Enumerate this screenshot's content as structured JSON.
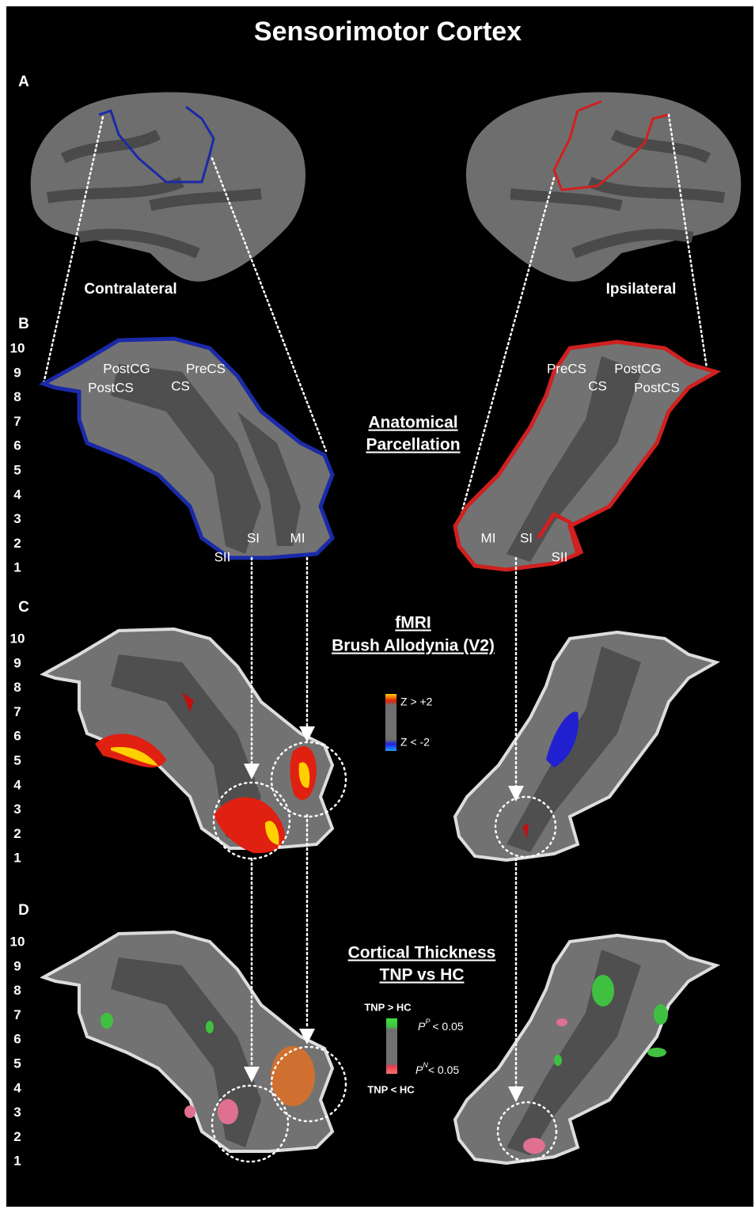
{
  "title": "Sensorimotor Cortex",
  "panels": {
    "A": {
      "letter": "A",
      "left_label": "Contralateral",
      "right_label": "Ipsilateral"
    },
    "B": {
      "letter": "B",
      "scale": [
        10,
        9,
        8,
        7,
        6,
        5,
        4,
        3,
        2,
        1
      ],
      "heading": [
        "Anatomical",
        "Parcellation"
      ],
      "left_regions": [
        "PostCG",
        "PreCS",
        "PostCS",
        "CS",
        "SI",
        "MI",
        "SII"
      ],
      "right_regions": [
        "PreCS",
        "PostCG",
        "CS",
        "PostCS",
        "MI",
        "SI",
        "SII"
      ]
    },
    "C": {
      "letter": "C",
      "scale": [
        10,
        9,
        8,
        7,
        6,
        5,
        4,
        3,
        2,
        1
      ],
      "heading": [
        "fMRI",
        "Brush Allodynia (V2)"
      ],
      "legend": [
        "Z > +2",
        "Z < -2"
      ]
    },
    "D": {
      "letter": "D",
      "scale": [
        10,
        9,
        8,
        7,
        6,
        5,
        4,
        3,
        2,
        1
      ],
      "heading": [
        "Cortical Thickness",
        "TNP vs HC"
      ],
      "legend_top": "TNP > HC",
      "legend_bottom": "TNP < HC",
      "sig_pos": {
        "symbol": "P",
        "sup": "P",
        "rest": "< 0.05"
      },
      "sig_neg": {
        "symbol": "P",
        "sup": "N",
        "rest": "< 0.05"
      }
    }
  }
}
